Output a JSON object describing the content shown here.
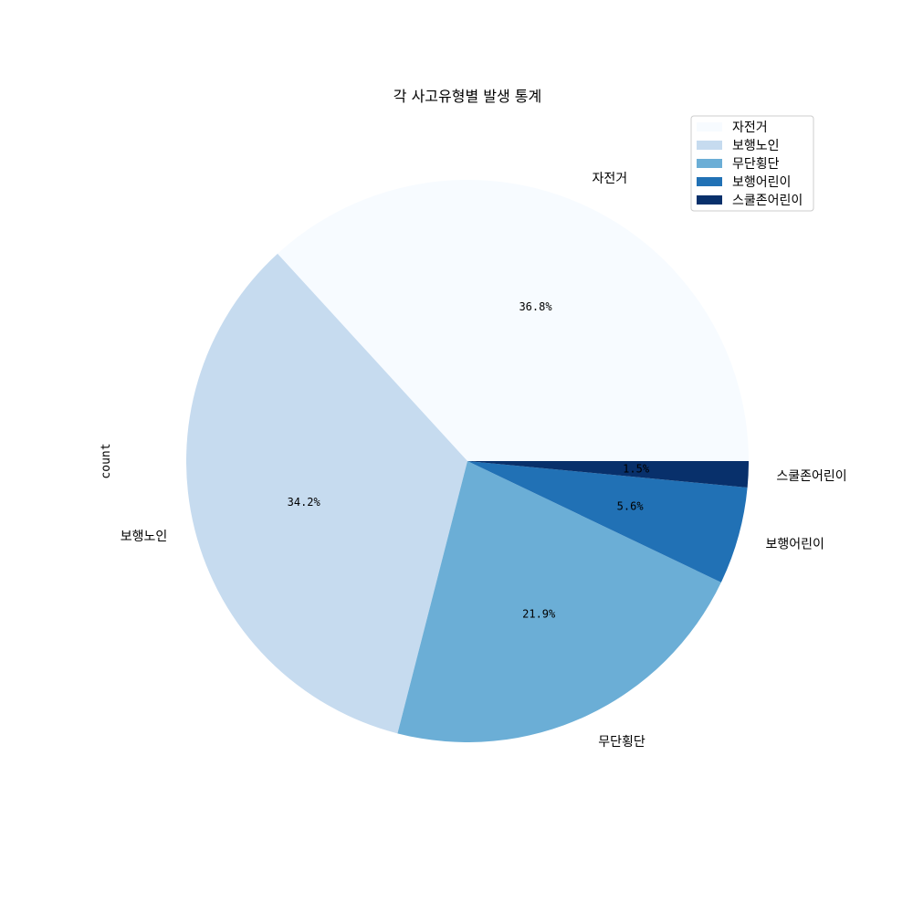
{
  "chart_data": {
    "type": "pie",
    "title": "각 사고유형별 발생 통계",
    "ylabel": "count",
    "slices": [
      {
        "label": "자전거",
        "value": 36.8,
        "pct_label": "36.8%",
        "color": "#f7fbff"
      },
      {
        "label": "보행노인",
        "value": 34.2,
        "pct_label": "34.2%",
        "color": "#c6dbef"
      },
      {
        "label": "무단횡단",
        "value": 21.9,
        "pct_label": "21.9%",
        "color": "#6baed6"
      },
      {
        "label": "보행어린이",
        "value": 5.6,
        "pct_label": "5.6%",
        "color": "#2171b5"
      },
      {
        "label": "스쿨존어린이",
        "value": 1.5,
        "pct_label": "1.5%",
        "color": "#08306b"
      }
    ],
    "legend": {
      "placement": "upper-right",
      "entries": [
        "자전거",
        "보행노인",
        "무단횡단",
        "보행어린이",
        "스쿨존어린이"
      ]
    },
    "start_angle": "0 degrees (3 o'clock), counter-clockwise"
  }
}
